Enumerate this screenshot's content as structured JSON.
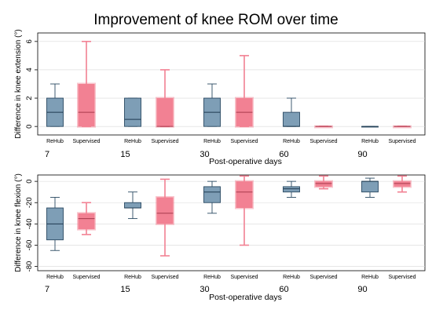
{
  "chart_data": {
    "type": "boxplot",
    "title": "Improvement of knee ROM over time",
    "groups": [
      "ReHub",
      "Supervised"
    ],
    "colors": {
      "ReHub": "#7e9eb6",
      "Supervised": "#f28193",
      "grid": "#d8d8d8",
      "frame": "#000000"
    },
    "panels": [
      {
        "id": "extension",
        "ylabel": "Difference in knee extension (°)",
        "xlabel": "Post-operative days",
        "ylim": [
          -0.6,
          6.6
        ],
        "yticks": [
          "0",
          "2",
          "4",
          "6"
        ],
        "days": [
          "7",
          "15",
          "30",
          "60",
          "90"
        ],
        "boxes": [
          [
            {
              "min": 0,
              "q1": 0,
              "median": 1,
              "q3": 2,
              "max": 3
            },
            {
              "min": 0,
              "q1": 0,
              "median": 1,
              "q3": 3,
              "max": 6
            }
          ],
          [
            {
              "min": 0,
              "q1": 0,
              "median": 0.5,
              "q3": 2,
              "max": 2
            },
            {
              "min": 0,
              "q1": 0,
              "median": 0,
              "q3": 2,
              "max": 4
            }
          ],
          [
            {
              "min": 0,
              "q1": 0,
              "median": 1,
              "q3": 2,
              "max": 3
            },
            {
              "min": 0,
              "q1": 0,
              "median": 1,
              "q3": 2,
              "max": 5
            }
          ],
          [
            {
              "min": 0,
              "q1": 0,
              "median": 0,
              "q3": 1,
              "max": 2
            },
            {
              "min": 0,
              "q1": 0,
              "median": 0,
              "q3": 0,
              "max": 0
            }
          ],
          [
            {
              "min": 0,
              "q1": 0,
              "median": 0,
              "q3": 0,
              "max": 0
            },
            {
              "min": 0,
              "q1": 0,
              "median": 0,
              "q3": 0,
              "max": 0
            }
          ]
        ]
      },
      {
        "id": "flexion",
        "ylabel": "Difference in knee flexion (°)",
        "xlabel": "Post-operative days",
        "ylim": [
          -84,
          6
        ],
        "yticks": [
          "0",
          "-20",
          "-40",
          "-60",
          "-80"
        ],
        "days": [
          "7",
          "15",
          "30",
          "60",
          "90"
        ],
        "boxes": [
          [
            {
              "min": -65,
              "q1": -55,
              "median": -40,
              "q3": -25,
              "max": -15
            },
            {
              "min": -50,
              "q1": -45,
              "median": -35,
              "q3": -30,
              "max": -20
            }
          ],
          [
            {
              "min": -35,
              "q1": -25,
              "median": -25,
              "q3": -20,
              "max": -10
            },
            {
              "min": -70,
              "q1": -40,
              "median": -30,
              "q3": -15,
              "max": 2
            }
          ],
          [
            {
              "min": -30,
              "q1": -20,
              "median": -10,
              "q3": -5,
              "max": 0
            },
            {
              "min": -60,
              "q1": -25,
              "median": -10,
              "q3": 0,
              "max": 5
            }
          ],
          [
            {
              "min": -15,
              "q1": -10,
              "median": -7,
              "q3": -5,
              "max": 0
            },
            {
              "min": -7,
              "q1": -5,
              "median": -2,
              "q3": 0,
              "max": 5
            }
          ],
          [
            {
              "min": -15,
              "q1": -10,
              "median": 0,
              "q3": 0,
              "max": 3
            },
            {
              "min": -10,
              "q1": -5,
              "median": -2,
              "q3": 0,
              "max": 5
            }
          ]
        ]
      }
    ]
  }
}
